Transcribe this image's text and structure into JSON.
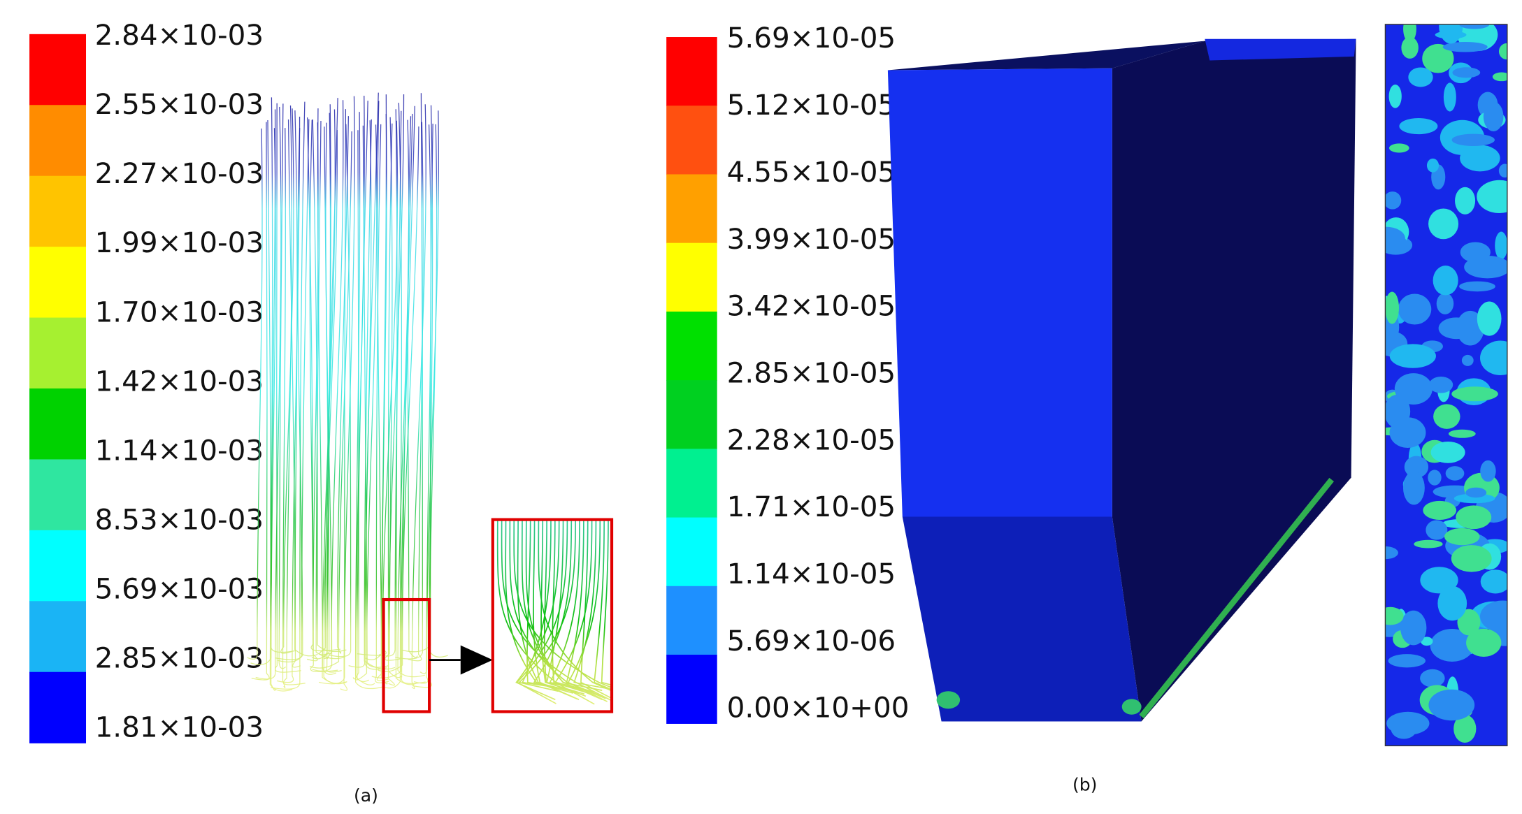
{
  "panels": [
    {
      "caption": "(a)",
      "colorbar": {
        "labels": [
          "2.84×10-03",
          "2.55×10-03",
          "2.27×10-03",
          "1.99×10-03",
          "1.70×10-03",
          "1.42×10-03",
          "1.14×10-03",
          "8.53×10-03",
          "5.69×10-03",
          "2.85×10-03",
          "1.81×10-03"
        ],
        "colors": [
          "#ff0000",
          "#ff8c00",
          "#ffc400",
          "#ffff00",
          "#a6f030",
          "#00d200",
          "#2fe6a0",
          "#00ffff",
          "#1ab4f5",
          "#0000ff"
        ]
      }
    },
    {
      "caption": "(b)",
      "colorbar": {
        "labels": [
          "5.69×10-05",
          "5.12×10-05",
          "4.55×10-05",
          "3.99×10-05",
          "3.42×10-05",
          "2.85×10-05",
          "2.28×10-05",
          "1.71×10-05",
          "1.14×10-05",
          "5.69×10-06",
          "0.00×10+00"
        ],
        "colors": [
          "#ff0000",
          "#ff5010",
          "#ffa000",
          "#ffff00",
          "#00e000",
          "#00d020",
          "#00f090",
          "#00ffff",
          "#1e90ff",
          "#0000ff"
        ]
      }
    }
  ]
}
